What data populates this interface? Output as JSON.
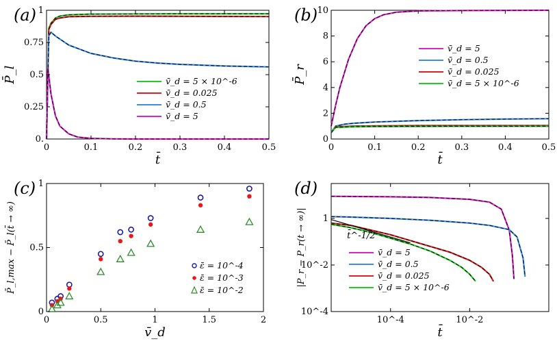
{
  "panels": [
    {
      "label": "(a)",
      "xlabel": "t̄",
      "ylabel": "P̄_l"
    },
    {
      "label": "(b)",
      "xlabel": "t̄",
      "ylabel": "P̄_r"
    },
    {
      "label": "(c)",
      "xlabel": "v̄_d",
      "ylabel": "P̄_l,max − P̄_l(t̄ → ∞)"
    },
    {
      "label": "(d)",
      "xlabel": "t̄",
      "ylabel": "|P_r − P_r(t → ∞)|"
    }
  ],
  "colors": {
    "magenta": "#dd22cc",
    "blue": "#3a8ee8",
    "red": "#e02020",
    "green": "#22cc22",
    "dashed": "#000000",
    "markerBlue": "#1a1aaa",
    "markerRed": "#e81818",
    "markerGreen": "#2c8c2c"
  },
  "chart_data": [
    {
      "type": "line",
      "panel": "a",
      "xlabel": "t̄",
      "ylabel": "P̄_l",
      "xlim": [
        0,
        0.5
      ],
      "ylim": [
        0,
        1
      ],
      "xticks": [
        "0",
        "0.1",
        "0.2",
        "0.3",
        "0.4",
        "0.5"
      ],
      "yticks": [
        "0.",
        "0.25",
        "0.5",
        "0.75",
        "1"
      ],
      "legend": [
        "v̄_d = 5 × 10^-6",
        "v̄_d = 0.025",
        "v̄_d = 0.5",
        "v̄_d = 5"
      ],
      "series": [
        {
          "name": "v̄_d = 5 × 10^-6",
          "color": "green",
          "x": [
            0,
            0.005,
            0.01,
            0.02,
            0.03,
            0.05,
            0.1,
            0.2,
            0.3,
            0.4,
            0.5
          ],
          "y": [
            0,
            0.86,
            0.9,
            0.94,
            0.955,
            0.965,
            0.97,
            0.972,
            0.973,
            0.973,
            0.973
          ]
        },
        {
          "name": "v̄_d = 0.025",
          "color": "red",
          "x": [
            0,
            0.005,
            0.01,
            0.02,
            0.03,
            0.05,
            0.1,
            0.2,
            0.3,
            0.4,
            0.5
          ],
          "y": [
            0,
            0.85,
            0.89,
            0.93,
            0.94,
            0.95,
            0.953,
            0.954,
            0.953,
            0.952,
            0.951
          ]
        },
        {
          "name": "v̄_d = 0.5",
          "color": "blue",
          "x": [
            0,
            0.005,
            0.01,
            0.02,
            0.05,
            0.1,
            0.15,
            0.2,
            0.25,
            0.3,
            0.4,
            0.5
          ],
          "y": [
            0,
            0.8,
            0.83,
            0.8,
            0.73,
            0.665,
            0.63,
            0.605,
            0.59,
            0.58,
            0.567,
            0.56
          ]
        },
        {
          "name": "v̄_d = 5",
          "color": "magenta",
          "x": [
            0,
            0.003,
            0.01,
            0.02,
            0.03,
            0.05,
            0.07,
            0.1,
            0.15,
            0.2,
            0.3,
            0.5
          ],
          "y": [
            0,
            0.55,
            0.35,
            0.18,
            0.1,
            0.04,
            0.015,
            0.005,
            0.001,
            0,
            0,
            0
          ]
        }
      ]
    },
    {
      "type": "line",
      "panel": "b",
      "xlabel": "t̄",
      "ylabel": "P̄_r",
      "xlim": [
        0,
        0.5
      ],
      "ylim": [
        0,
        10
      ],
      "xticks": [
        "0",
        "0.1",
        "0.2",
        "0.3",
        "0.4",
        "0.5"
      ],
      "yticks": [
        "0",
        "2",
        "4",
        "6",
        "8",
        "10"
      ],
      "legend": [
        "v̄_d = 5",
        "v̄_d = 0.5",
        "v̄_d = 0.025",
        "v̄_d = 5 × 10^-6"
      ],
      "series": [
        {
          "name": "v̄_d = 5",
          "color": "magenta",
          "x": [
            0,
            0.01,
            0.02,
            0.04,
            0.06,
            0.08,
            0.1,
            0.12,
            0.15,
            0.2,
            0.3,
            0.5
          ],
          "y": [
            1,
            2.6,
            4.0,
            6.2,
            7.8,
            8.8,
            9.35,
            9.65,
            9.85,
            9.95,
            9.98,
            10
          ]
        },
        {
          "name": "v̄_d = 0.5",
          "color": "blue",
          "x": [
            0,
            0.01,
            0.03,
            0.05,
            0.1,
            0.2,
            0.3,
            0.4,
            0.5
          ],
          "y": [
            0.5,
            1.0,
            1.15,
            1.22,
            1.32,
            1.43,
            1.5,
            1.55,
            1.58
          ]
        },
        {
          "name": "v̄_d = 0.025",
          "color": "red",
          "x": [
            0,
            0.01,
            0.05,
            0.1,
            0.2,
            0.5
          ],
          "y": [
            0.5,
            0.95,
            1.0,
            1.02,
            1.04,
            1.05
          ]
        },
        {
          "name": "v̄_d = 5 × 10^-6",
          "color": "green",
          "x": [
            0,
            0.01,
            0.05,
            0.1,
            0.2,
            0.5
          ],
          "y": [
            0.5,
            0.9,
            0.95,
            0.97,
            0.98,
            0.99
          ]
        }
      ]
    },
    {
      "type": "scatter",
      "panel": "c",
      "xlabel": "v̄_d",
      "ylabel": "P̄_l,max − P̄_l(t̄ → ∞)",
      "xlim": [
        0,
        2
      ],
      "ylim": [
        0,
        1
      ],
      "xticks": [
        "0",
        "0.5",
        "1",
        "1.5",
        "2"
      ],
      "yticks": [
        "0",
        "0.5",
        "1"
      ],
      "legend": [
        "ε̄ = 10^-4",
        "ε̄ = 10^-3",
        "ε̄ = 10^-2"
      ],
      "series": [
        {
          "name": "ε̄ = 10^-4",
          "marker": "open-circle",
          "color": "markerBlue",
          "x": [
            0.05,
            0.1,
            0.13,
            0.21,
            0.5,
            0.68,
            0.78,
            0.96,
            1.42,
            1.87
          ],
          "y": [
            0.07,
            0.1,
            0.12,
            0.21,
            0.45,
            0.62,
            0.64,
            0.73,
            0.89,
            0.96
          ]
        },
        {
          "name": "ε̄ = 10^-3",
          "marker": "filled-circle",
          "color": "markerRed",
          "x": [
            0.05,
            0.1,
            0.13,
            0.21,
            0.5,
            0.68,
            0.78,
            0.96,
            1.42,
            1.87
          ],
          "y": [
            0.05,
            0.08,
            0.1,
            0.18,
            0.41,
            0.55,
            0.59,
            0.68,
            0.83,
            0.9
          ]
        },
        {
          "name": "ε̄ = 10^-2",
          "marker": "open-triangle",
          "color": "markerGreen",
          "x": [
            0.05,
            0.1,
            0.13,
            0.21,
            0.5,
            0.68,
            0.78,
            0.96,
            1.42,
            1.87
          ],
          "y": [
            0.02,
            0.05,
            0.07,
            0.12,
            0.31,
            0.41,
            0.46,
            0.53,
            0.64,
            0.7
          ]
        }
      ]
    },
    {
      "type": "line",
      "panel": "d",
      "scale": "log-log",
      "xlabel": "t̄",
      "ylabel": "|P_r − P_r(t → ∞)|",
      "xlim_log10": [
        -5.5,
        0
      ],
      "ylim_log10": [
        -4,
        1.5
      ],
      "xticks": [
        "10^-4",
        "10^-2"
      ],
      "yticks": [
        "10^-4",
        "10^-2",
        "1"
      ],
      "legend": [
        "v̄_d = 5",
        "v̄_d = 0.5",
        "v̄_d = 0.025",
        "v̄_d = 5 × 10^-6"
      ],
      "annotation": "t̄^-1/2",
      "reference_line": {
        "log10_t": [
          -5.5,
          -3.5
        ],
        "log10_y": [
          -0.05,
          -1.05
        ]
      },
      "series": [
        {
          "name": "v̄_d = 5",
          "color": "magenta",
          "log10_t": [
            -5.5,
            -4,
            -3,
            -2,
            -1.5,
            -1.2,
            -1.0,
            -0.92,
            -0.88
          ],
          "log10_y": [
            0.95,
            0.93,
            0.9,
            0.82,
            0.7,
            0.4,
            -0.5,
            -1.6,
            -2.6
          ]
        },
        {
          "name": "v̄_d = 0.5",
          "color": "blue",
          "log10_t": [
            -5.5,
            -5,
            -4,
            -3,
            -2,
            -1.5,
            -1,
            -0.8,
            -0.65,
            -0.6
          ],
          "log10_y": [
            0.08,
            0.06,
            0.0,
            -0.08,
            -0.2,
            -0.3,
            -0.48,
            -0.8,
            -1.7,
            -2.5
          ]
        },
        {
          "name": "v̄_d = 0.025",
          "color": "red",
          "log10_t": [
            -5.5,
            -5,
            -4.5,
            -4,
            -3.5,
            -3,
            -2.5,
            -2,
            -1.7,
            -1.5,
            -1.4
          ],
          "log10_y": [
            -0.2,
            -0.3,
            -0.5,
            -0.7,
            -0.95,
            -1.2,
            -1.45,
            -1.8,
            -2.1,
            -2.4,
            -2.7
          ]
        },
        {
          "name": "v̄_d = 5 × 10^-6",
          "color": "green",
          "log10_t": [
            -5.5,
            -5,
            -4.5,
            -4,
            -3.5,
            -3,
            -2.5,
            -2.2,
            -2.0,
            -1.85
          ],
          "log10_y": [
            -0.25,
            -0.4,
            -0.6,
            -0.85,
            -1.1,
            -1.4,
            -1.8,
            -2.1,
            -2.4,
            -2.7
          ]
        }
      ]
    }
  ]
}
